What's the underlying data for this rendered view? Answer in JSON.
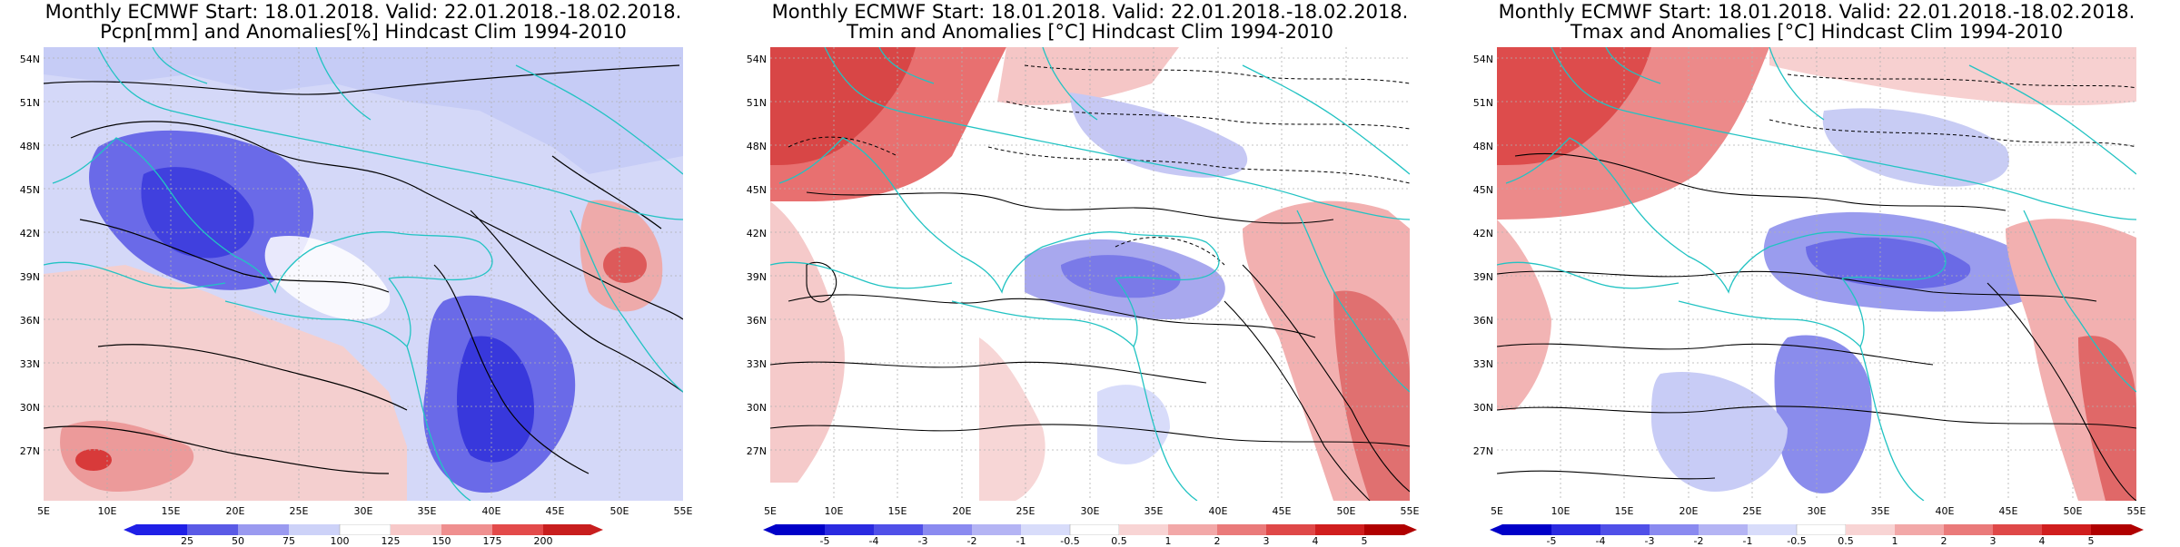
{
  "panels": [
    {
      "title1": "Monthly ECMWF Start: 18.01.2018. Valid: 22.01.2018.-18.02.2018.",
      "title2": "Pcpn[mm] and Anomalies[%] Hindcast Clim 1994-2010",
      "colorbar_labels": [
        "25",
        "50",
        "75",
        "100",
        "125",
        "150",
        "175",
        "200"
      ],
      "palette": [
        "#1f1fe6",
        "#5a5ae6",
        "#9a9af0",
        "#cdd2f8",
        "#ffffff",
        "#f7c9c9",
        "#ef8f8f",
        "#e34a4a",
        "#c81e1e"
      ]
    },
    {
      "title1": "Monthly ECMWF Start: 18.01.2018. Valid: 22.01.2018.-18.02.2018.",
      "title2": "Tmin and Anomalies [°C] Hindcast Clim 1994-2010",
      "colorbar_labels": [
        "-5",
        "-4",
        "-3",
        "-2",
        "-1",
        "-0.5",
        "0.5",
        "1",
        "2",
        "3",
        "4",
        "5"
      ],
      "palette": [
        "#0000c8",
        "#2a2ae0",
        "#5050e8",
        "#8a8af0",
        "#b4b4f4",
        "#d8dcfa",
        "#ffffff",
        "#f8d4d4",
        "#f2a8a8",
        "#ea7a7a",
        "#df4848",
        "#d01e1e",
        "#b00000"
      ]
    },
    {
      "title1": "Monthly ECMWF Start: 18.01.2018. Valid: 22.01.2018.-18.02.2018.",
      "title2": "Tmax and Anomalies [°C] Hindcast Clim 1994-2010",
      "colorbar_labels": [
        "-5",
        "-4",
        "-3",
        "-2",
        "-1",
        "-0.5",
        "0.5",
        "1",
        "2",
        "3",
        "4",
        "5"
      ],
      "palette": [
        "#0000c8",
        "#2a2ae0",
        "#5050e8",
        "#8a8af0",
        "#b4b4f4",
        "#d8dcfa",
        "#ffffff",
        "#f8d4d4",
        "#f2a8a8",
        "#ea7a7a",
        "#df4848",
        "#d01e1e",
        "#b00000"
      ]
    }
  ],
  "axes": {
    "lat_labels": [
      "54N",
      "51N",
      "48N",
      "45N",
      "42N",
      "39N",
      "36N",
      "33N",
      "30N",
      "27N"
    ],
    "lon_labels": [
      "5E",
      "10E",
      "15E",
      "20E",
      "25E",
      "30E",
      "35E",
      "40E",
      "45E",
      "50E",
      "55E"
    ]
  },
  "colors": {
    "coast": "#22c3c3",
    "contour": "#000000",
    "grid": "#b0b0b0"
  }
}
